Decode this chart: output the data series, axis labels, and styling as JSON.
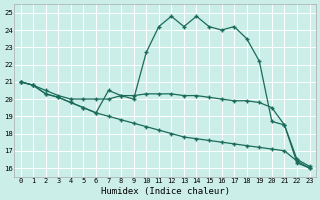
{
  "xlabel": "Humidex (Indice chaleur)",
  "bg_color": "#cceee8",
  "line_color": "#1a6b5a",
  "hours": [
    0,
    1,
    2,
    3,
    4,
    5,
    6,
    7,
    8,
    9,
    10,
    11,
    12,
    13,
    14,
    15,
    16,
    17,
    18,
    19,
    20,
    21,
    22,
    23
  ],
  "line_main": [
    21.0,
    20.8,
    20.3,
    20.1,
    19.8,
    19.5,
    19.2,
    20.5,
    20.2,
    20.0,
    22.7,
    24.2,
    24.8,
    24.2,
    24.8,
    24.2,
    24.0,
    24.2,
    23.5,
    22.2,
    18.7,
    18.5,
    16.3,
    16.0
  ],
  "line_flat": [
    21.0,
    20.8,
    20.5,
    20.2,
    20.0,
    20.0,
    20.0,
    20.0,
    20.2,
    20.2,
    20.3,
    20.3,
    20.3,
    20.2,
    20.2,
    20.1,
    20.0,
    19.9,
    19.9,
    19.8,
    19.5,
    18.5,
    16.5,
    16.1
  ],
  "line_low": [
    21.0,
    20.8,
    20.3,
    20.1,
    19.8,
    19.5,
    19.2,
    19.0,
    18.8,
    18.6,
    18.4,
    18.2,
    18.0,
    17.8,
    17.7,
    17.6,
    17.5,
    17.4,
    17.3,
    17.2,
    17.1,
    17.0,
    16.4,
    16.0
  ],
  "ylim": [
    15.5,
    25.5
  ],
  "yticks": [
    16,
    17,
    18,
    19,
    20,
    21,
    22,
    23,
    24,
    25
  ],
  "xlim": [
    -0.5,
    23.5
  ],
  "figsize": [
    3.2,
    2.0
  ],
  "dpi": 100
}
